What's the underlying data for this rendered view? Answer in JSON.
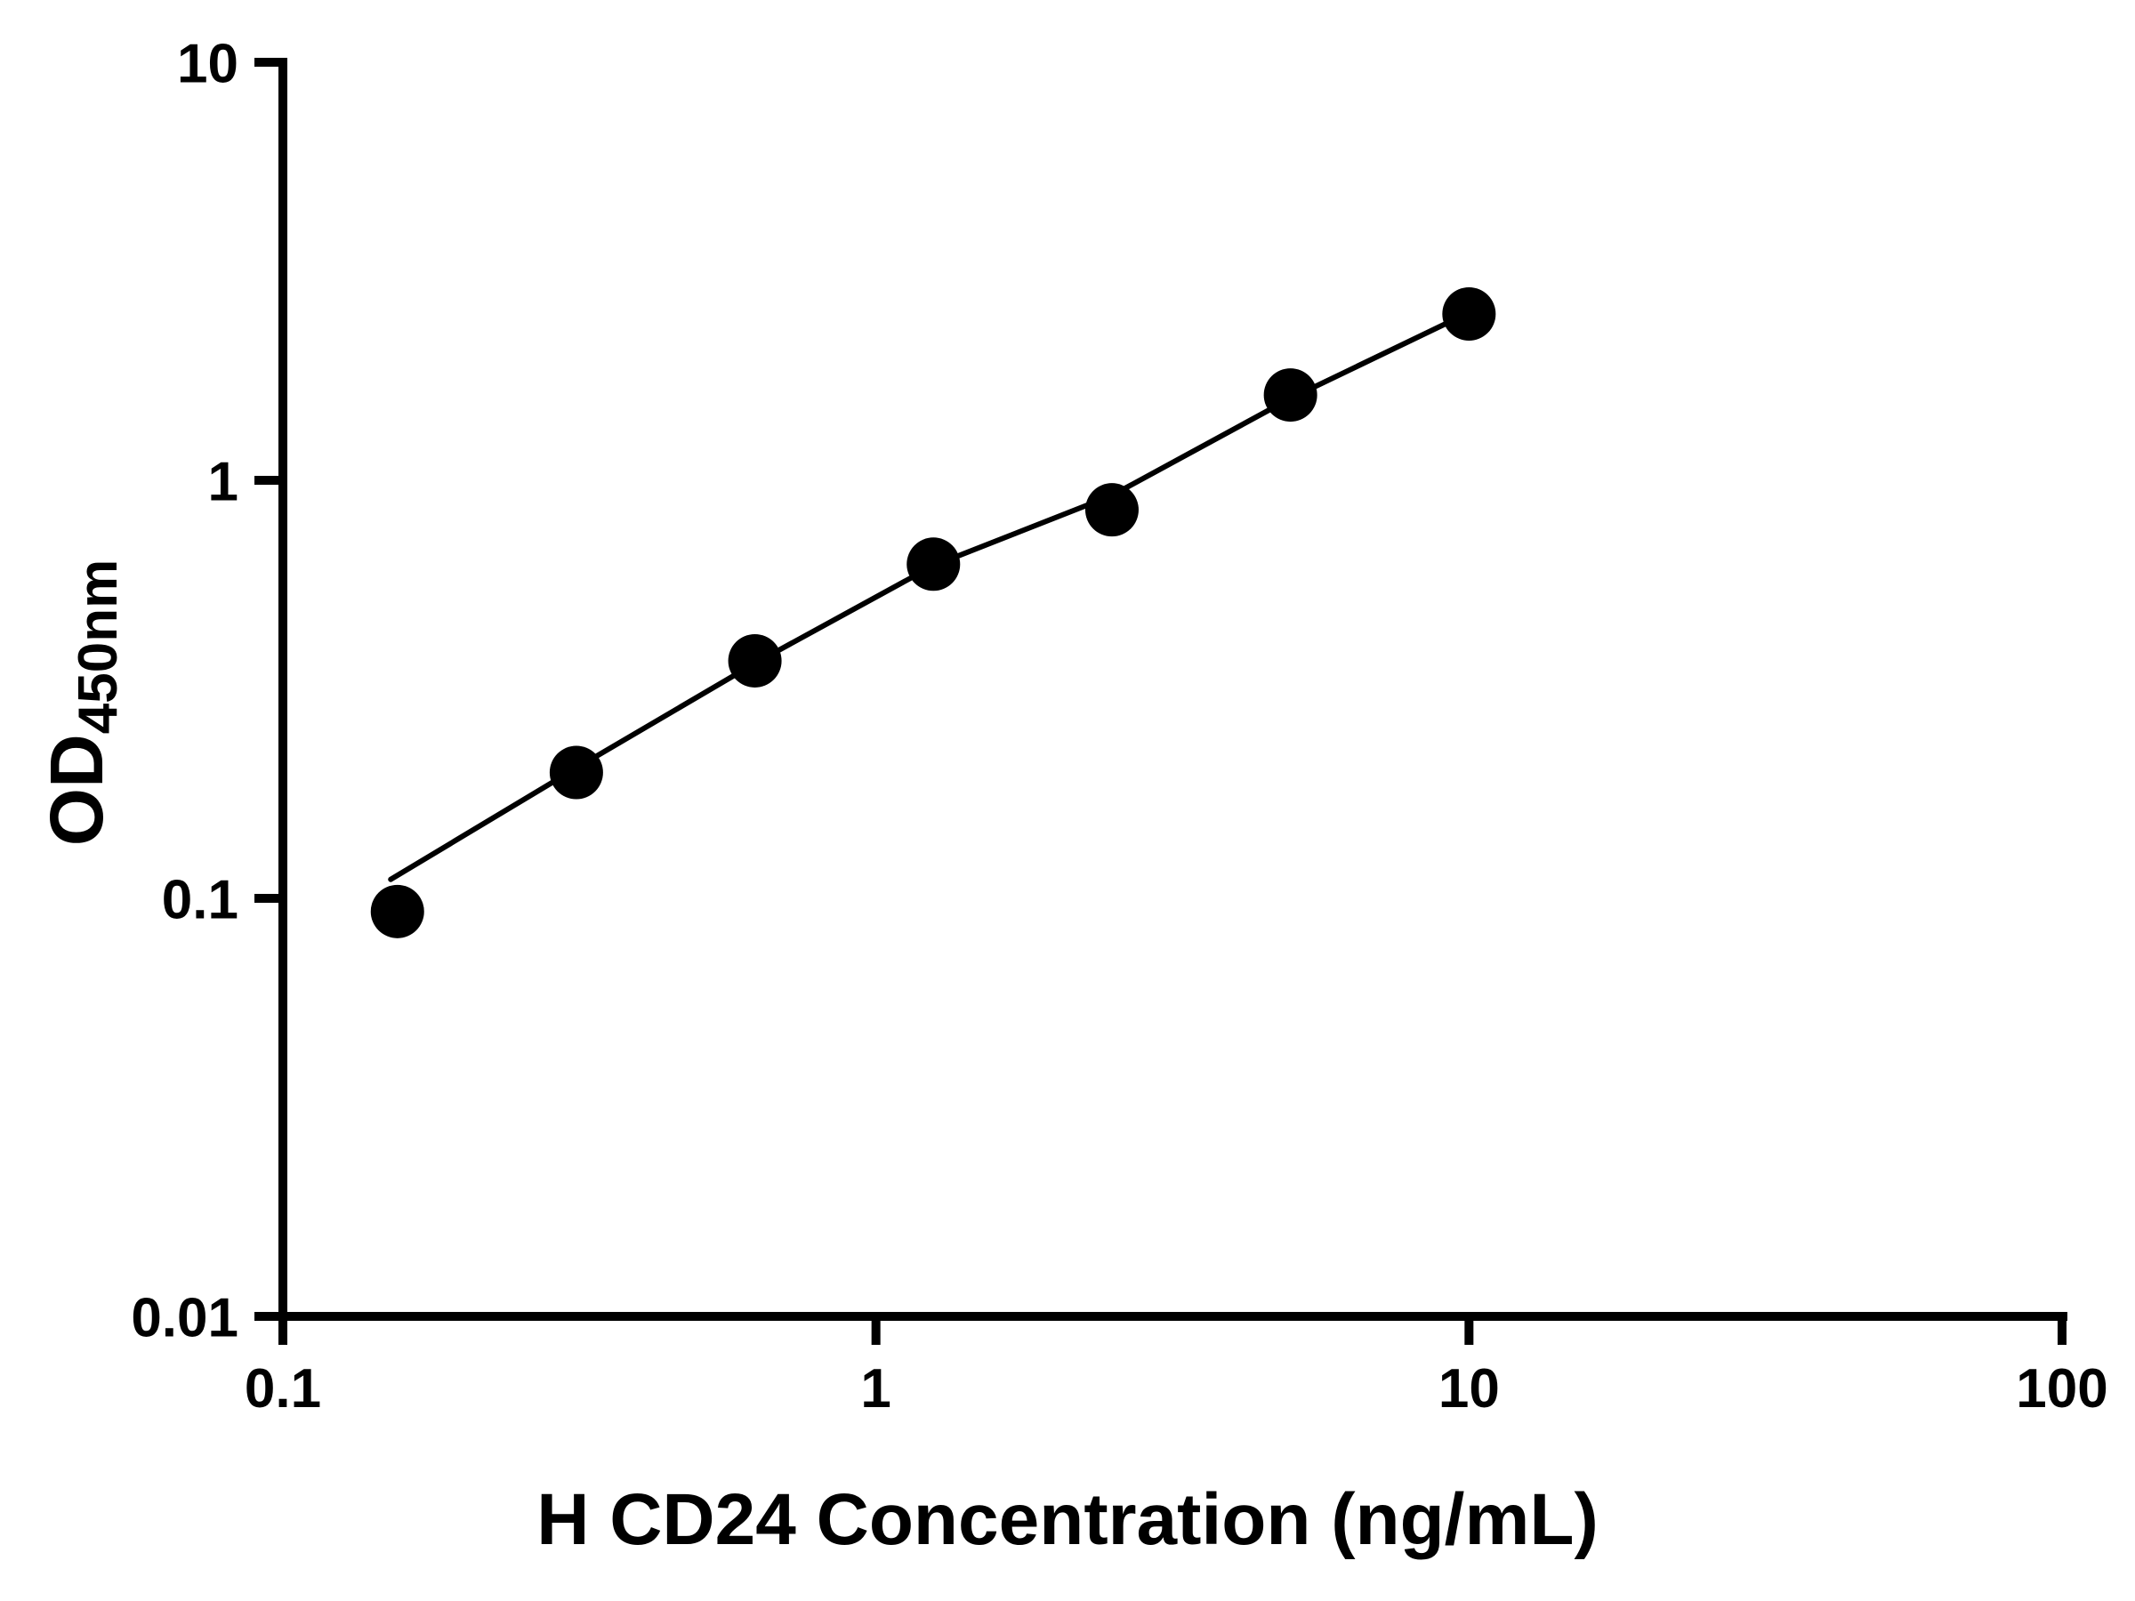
{
  "figure": {
    "background_color": "#ffffff",
    "foreground_color": "#000000"
  },
  "chart_data": {
    "type": "scatter",
    "title": "",
    "xlabel": "H CD24 Concentration (ng/mL)",
    "ylabel": "OD",
    "ylabel_subscript": "450nm",
    "x_scale": "log",
    "y_scale": "log",
    "xlim": [
      0.1,
      100
    ],
    "ylim": [
      0.01,
      10
    ],
    "x_ticks": [
      0.1,
      1,
      10,
      100
    ],
    "x_tick_labels": [
      "0.1",
      "1",
      "10",
      "100"
    ],
    "y_ticks": [
      0.01,
      0.1,
      1,
      10
    ],
    "y_tick_labels": [
      "0.01",
      "0.1",
      "1",
      "10"
    ],
    "grid": false,
    "legend": "none",
    "axis_color": "#000000",
    "series": [
      {
        "name": "fit-line",
        "type": "line",
        "color": "#000000",
        "points": [
          {
            "x": 0.152,
            "y": 0.111
          },
          {
            "x": 0.3125,
            "y": 0.205
          },
          {
            "x": 0.625,
            "y": 0.365
          },
          {
            "x": 1.25,
            "y": 0.625
          },
          {
            "x": 2.5,
            "y": 0.92
          },
          {
            "x": 5,
            "y": 1.57
          },
          {
            "x": 10,
            "y": 2.52
          }
        ]
      },
      {
        "name": "standard-points",
        "type": "scatter",
        "marker": "circle",
        "color": "#000000",
        "points": [
          {
            "x": 0.156,
            "y": 0.093
          },
          {
            "x": 0.3125,
            "y": 0.2
          },
          {
            "x": 0.625,
            "y": 0.37
          },
          {
            "x": 1.25,
            "y": 0.63
          },
          {
            "x": 2.5,
            "y": 0.85
          },
          {
            "x": 5,
            "y": 1.6
          },
          {
            "x": 10,
            "y": 2.5
          }
        ]
      }
    ]
  }
}
